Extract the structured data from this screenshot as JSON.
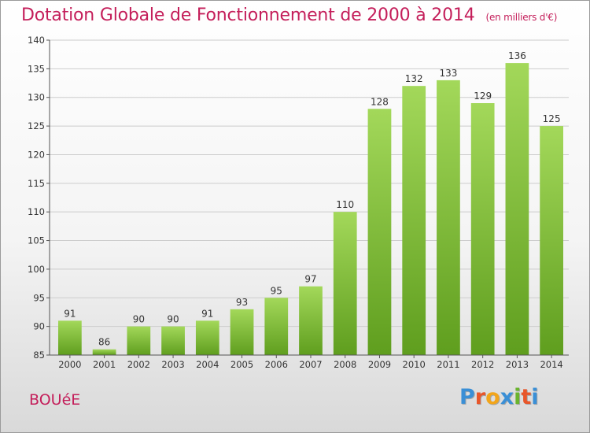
{
  "header": {
    "title": "Dotation Globale de Fonctionnement de 2000 à 2014",
    "unit": "(en milliers d'€)"
  },
  "footer": {
    "commune": "BOUéE",
    "logo_letters": [
      "P",
      "r",
      "o",
      "x",
      "i",
      "t",
      "i"
    ],
    "logo_colors": [
      "#3a8fd6",
      "#e8562a",
      "#f2a51a",
      "#3a8fd6",
      "#6ab42d",
      "#e8562a",
      "#3a8fd6"
    ]
  },
  "colors": {
    "bar_light": "#a3d85a",
    "bar_dark": "#5f9e1e",
    "grid": "#cccccc"
  },
  "chart_data": {
    "type": "bar",
    "title": "Dotation Globale de Fonctionnement de 2000 à 2014",
    "subtitle": "(en milliers d'€)",
    "xlabel": "",
    "ylabel": "",
    "categories": [
      "2000",
      "2001",
      "2002",
      "2003",
      "2004",
      "2005",
      "2006",
      "2007",
      "2008",
      "2009",
      "2010",
      "2011",
      "2012",
      "2013",
      "2014"
    ],
    "values": [
      91,
      86,
      90,
      90,
      91,
      93,
      95,
      97,
      110,
      128,
      132,
      133,
      129,
      136,
      125
    ],
    "ylim": [
      85,
      140
    ],
    "yticks": [
      85,
      90,
      95,
      100,
      105,
      110,
      115,
      120,
      125,
      130,
      135,
      140
    ],
    "grid": true,
    "legend": "none"
  }
}
